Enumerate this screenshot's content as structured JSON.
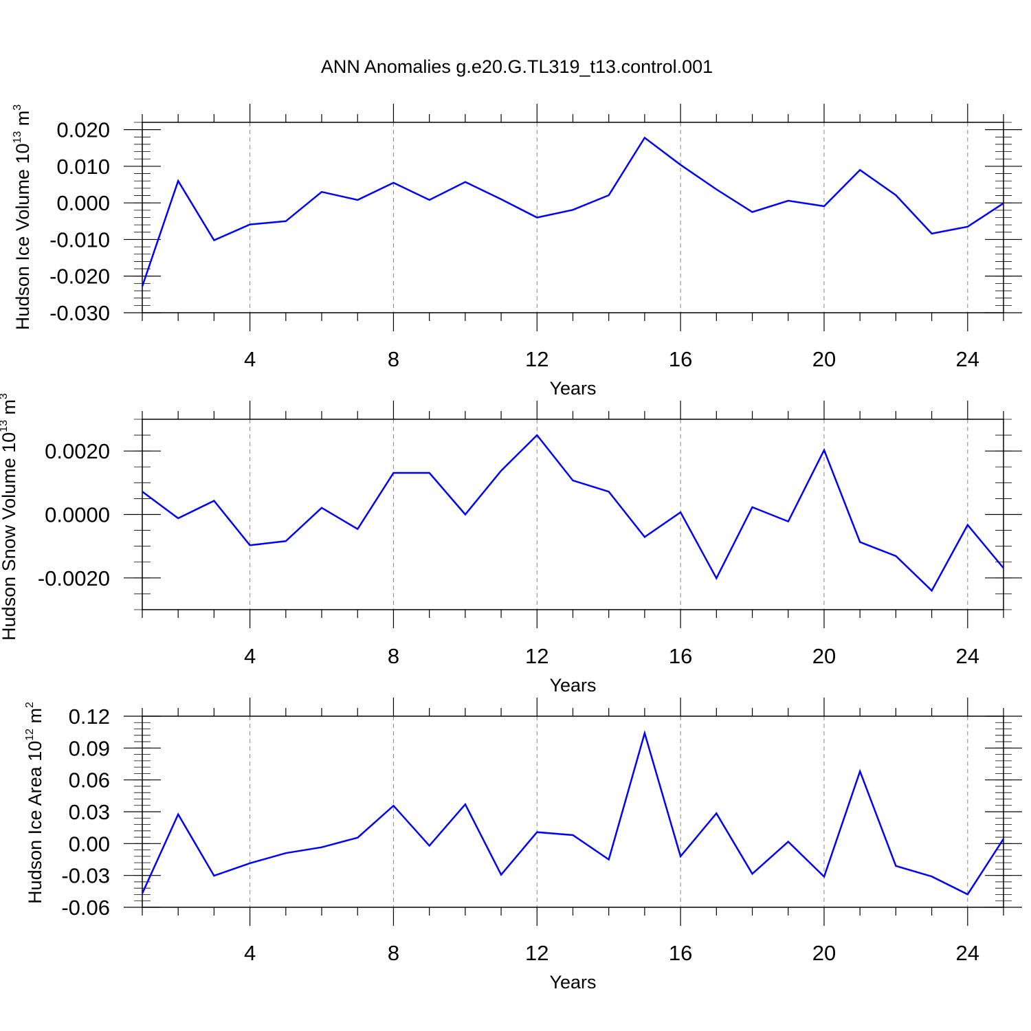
{
  "title": "ANN Anomalies g.e20.G.TL319_t13.control.001",
  "line_color": "#0000ff",
  "chart_data": [
    {
      "type": "line",
      "xlabel": "Years",
      "ylabel": "Hudson Ice Volume 10",
      "ylabel_exp": "13",
      "ylabel_unit": " m",
      "ylabel_unit_exp": "3",
      "xlim": [
        1,
        25
      ],
      "ylim": [
        -0.03,
        0.022
      ],
      "x_ticks": [
        4,
        8,
        12,
        16,
        20,
        24
      ],
      "x_tick_labels": [
        "4",
        "8",
        "12",
        "16",
        "20",
        "24"
      ],
      "y_ticks": [
        -0.03,
        -0.02,
        -0.01,
        0.0,
        0.01,
        0.02
      ],
      "y_tick_labels": [
        "-0.030",
        "-0.020",
        "-0.010",
        "0.000",
        "0.010",
        "0.020"
      ],
      "y_minor_step": 0.002,
      "grid": "vertical dashed at major x ticks",
      "series": [
        {
          "x": [
            1,
            2,
            3,
            4,
            5,
            6,
            7,
            8,
            9,
            10,
            11,
            12,
            13,
            14,
            15,
            16,
            17,
            18,
            19,
            20,
            21,
            22,
            23,
            24,
            25
          ],
          "values": [
            -0.0228,
            0.006,
            -0.0102,
            -0.0059,
            -0.005,
            0.003,
            0.0008,
            0.0055,
            0.0008,
            0.0057,
            0.001,
            -0.004,
            -0.0019,
            0.0021,
            0.0178,
            0.0104,
            0.0037,
            -0.0025,
            0.0006,
            -0.0009,
            0.009,
            0.0021,
            -0.0084,
            -0.0065,
            -0.0001
          ]
        }
      ]
    },
    {
      "type": "line",
      "xlabel": "Years",
      "ylabel": "Hudson Snow Volume 10",
      "ylabel_exp": "13",
      "ylabel_unit": " m",
      "ylabel_unit_exp": "3",
      "xlim": [
        1,
        25
      ],
      "ylim": [
        -0.003,
        0.003
      ],
      "x_ticks": [
        4,
        8,
        12,
        16,
        20,
        24
      ],
      "x_tick_labels": [
        "4",
        "8",
        "12",
        "16",
        "20",
        "24"
      ],
      "y_ticks": [
        -0.002,
        0.0,
        0.002
      ],
      "y_tick_labels": [
        "-0.0020",
        "0.0000",
        "0.0020"
      ],
      "y_minor_step": 0.0005,
      "grid": "vertical dashed at major x ticks",
      "series": [
        {
          "x": [
            1,
            2,
            3,
            4,
            5,
            6,
            7,
            8,
            9,
            10,
            11,
            12,
            13,
            14,
            15,
            16,
            17,
            18,
            19,
            20,
            21,
            22,
            23,
            24,
            25
          ],
          "values": [
            0.00072,
            -0.00012,
            0.00043,
            -0.00097,
            -0.00084,
            0.00021,
            -0.00046,
            0.00131,
            0.00131,
            0.0,
            0.00138,
            0.0025,
            0.00107,
            0.00072,
            -0.00071,
            7e-05,
            -0.00201,
            0.00023,
            -0.00022,
            0.00203,
            -0.00087,
            -0.00131,
            -0.0024,
            -0.00033,
            -0.00169
          ]
        }
      ]
    },
    {
      "type": "line",
      "xlabel": "Years",
      "ylabel": "Hudson Ice Area 10",
      "ylabel_exp": "12",
      "ylabel_unit": " m",
      "ylabel_unit_exp": "2",
      "xlim": [
        1,
        25
      ],
      "ylim": [
        -0.06,
        0.12
      ],
      "x_ticks": [
        4,
        8,
        12,
        16,
        20,
        24
      ],
      "x_tick_labels": [
        "4",
        "8",
        "12",
        "16",
        "20",
        "24"
      ],
      "y_ticks": [
        -0.06,
        -0.03,
        0.0,
        0.03,
        0.06,
        0.09,
        0.12
      ],
      "y_tick_labels": [
        "-0.06",
        "-0.03",
        "0.00",
        "0.03",
        "0.06",
        "0.09",
        "0.12"
      ],
      "y_minor_step": 0.006,
      "grid": "vertical dashed at major x ticks",
      "series": [
        {
          "x": [
            1,
            2,
            3,
            4,
            5,
            6,
            7,
            8,
            9,
            10,
            11,
            12,
            13,
            14,
            15,
            16,
            17,
            18,
            19,
            20,
            21,
            22,
            23,
            24,
            25
          ],
          "values": [
            -0.047,
            0.0276,
            -0.0303,
            -0.0185,
            -0.009,
            -0.0035,
            0.0056,
            0.0357,
            -0.002,
            0.037,
            -0.0293,
            0.0108,
            0.008,
            -0.015,
            0.104,
            -0.012,
            0.0285,
            -0.0285,
            0.0018,
            -0.0312,
            0.0681,
            -0.021,
            -0.031,
            -0.0478,
            0.0045
          ]
        }
      ]
    }
  ]
}
